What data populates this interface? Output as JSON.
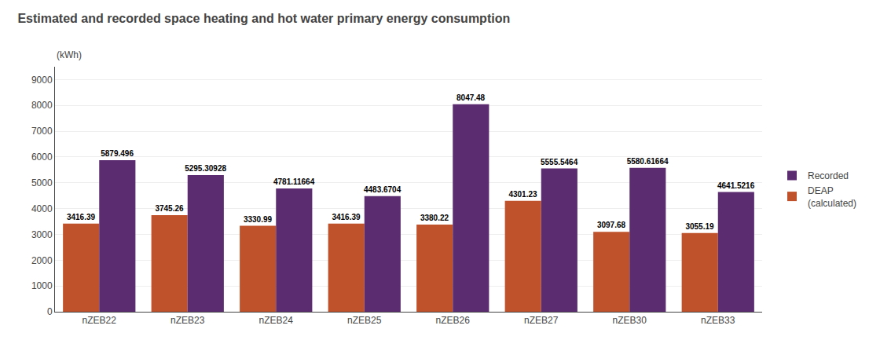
{
  "chart_data": {
    "type": "bar",
    "title": "Estimated and recorded space heating and hot water primary energy consumption",
    "ylabel": "(kWh)",
    "categories": [
      "nZEB22",
      "nZEB23",
      "nZEB24",
      "nZEB25",
      "nZEB26",
      "nZEB27",
      "nZEB30",
      "nZEB33"
    ],
    "series": [
      {
        "name": "DEAP\n(calculated)",
        "color": "#c0522b",
        "values": [
          3416.39,
          3745.26,
          3330.99,
          3416.39,
          3380.22,
          4301.23,
          3097.68,
          3055.19
        ]
      },
      {
        "name": "Recorded",
        "color": "#5b2c6f",
        "values": [
          5879.496,
          5295.30928,
          4781.11664,
          4483.6704,
          8047.48,
          5555.5464,
          5580.61664,
          4641.5216
        ]
      }
    ],
    "ylim": [
      0,
      9500
    ],
    "yticks": [
      0,
      1000,
      2000,
      3000,
      4000,
      5000,
      6000,
      7000,
      8000,
      9000
    ],
    "grid": true,
    "legend": "right",
    "data_labels": true
  }
}
